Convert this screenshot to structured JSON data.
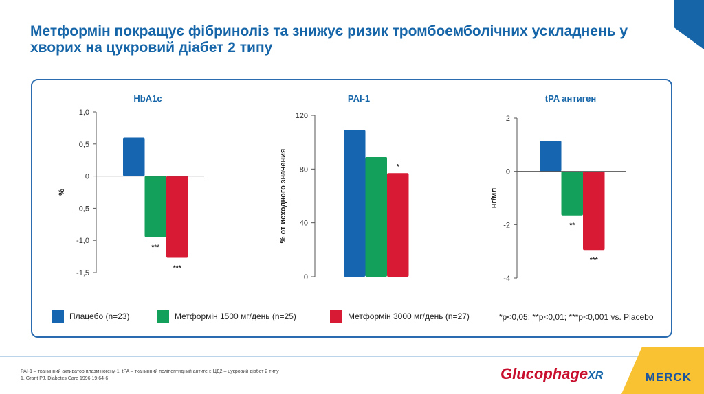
{
  "title": "Метформін покращує фібриноліз та знижує ризик тромбоемболічних ускладнень у хворих на цукровий діабет 2 типу",
  "colors": {
    "placebo": "#1565b0",
    "met1500": "#12a05a",
    "met3000": "#d81a34",
    "accent": "#1565a8"
  },
  "chart_data": [
    {
      "type": "bar",
      "title": "HbA1c",
      "ylabel": "%",
      "ylim": [
        -1.5,
        1.0
      ],
      "ticks": [
        "1,0",
        "0,5",
        "0",
        "-0,5",
        "-1,0",
        "-1,5"
      ],
      "tickvals": [
        1,
        0.5,
        0,
        -0.5,
        -1,
        -1.5
      ],
      "values": [
        0.6,
        -0.95,
        -1.27
      ],
      "annotations": [
        "",
        "***",
        "***"
      ]
    },
    {
      "type": "bar",
      "title": "PAI-1",
      "ylabel": "% от исходного значения",
      "ylim": [
        0,
        120
      ],
      "ticks": [
        "120",
        "80",
        "40",
        "0"
      ],
      "tickvals": [
        120,
        80,
        40,
        0
      ],
      "values": [
        109,
        89,
        77
      ],
      "annotations": [
        "",
        "",
        "*"
      ]
    },
    {
      "type": "bar",
      "title": "tPA антиген",
      "ylabel": "нг/мл",
      "ylim": [
        -4,
        2
      ],
      "ticks": [
        "2",
        "0",
        "-2",
        "-4"
      ],
      "tickvals": [
        2,
        0,
        -2,
        -4
      ],
      "values": [
        1.15,
        -1.65,
        -2.95
      ],
      "annotations": [
        "",
        "**",
        "***"
      ]
    }
  ],
  "legend": {
    "placebo": "Плацебо (n=23)",
    "met1500": "Метформін 1500 мг/день (n=25)",
    "met3000": "Метформін 3000 мг/день (n=27)",
    "significance": "*p<0,05; **p<0,01;  ***p<0,001 vs. Placebo"
  },
  "footer": {
    "line1": "PAI-1 – тканинний активатор плазміногену-1;  tPA – тканинний поліпептидний антиген; ЦД2 – цукровий діабет 2 типу",
    "line2": "1. Grant PJ. Diabetes Care 1996;19:64-6"
  },
  "logos": {
    "glucophage": "Glucophage XR",
    "merck": "MERCK"
  }
}
